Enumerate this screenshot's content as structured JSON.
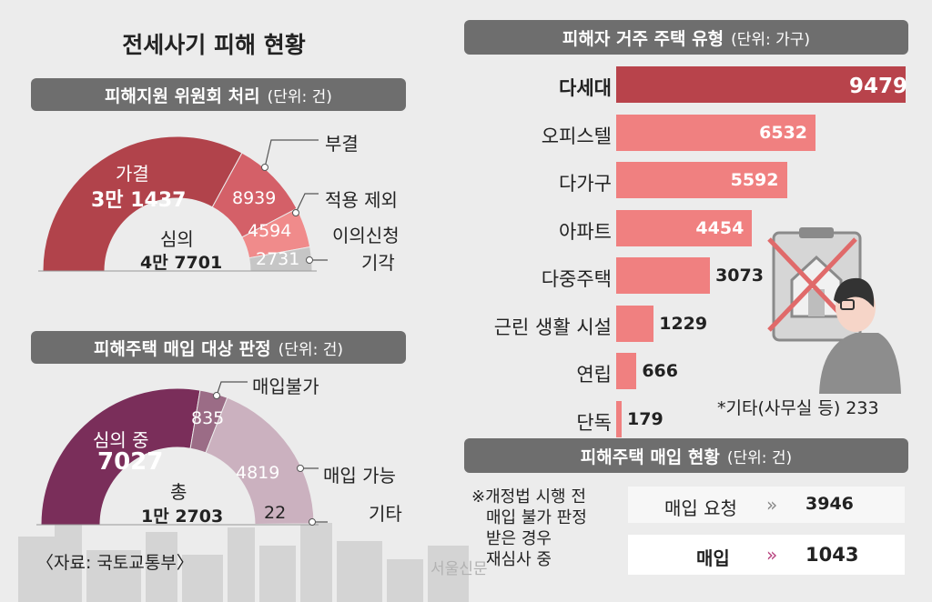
{
  "main_title": "전세사기 피해 현황",
  "left_top": {
    "header": "피해지원 위원회 처리",
    "unit": "(단위: 건)",
    "center_label": "심의",
    "center_value": "4만 7701",
    "inner_value_label": "가결",
    "inner_value": "3만 1437",
    "labels": [
      "부결",
      "적용 제외",
      "이의신청",
      "기각"
    ],
    "values": [
      "8939",
      "4594",
      "2731"
    ]
  },
  "left_bottom": {
    "header": "피해주택 매입 대상 판정",
    "unit": "(단위: 건)",
    "center_label": "총",
    "center_value": "1만 2703",
    "inner_label": "심의 중",
    "inner_value": "7027",
    "labels": [
      "매입불가",
      "매입 가능",
      "기타"
    ],
    "values": [
      "835",
      "4819",
      "22"
    ]
  },
  "source": "〈자료: 국토교통부〉",
  "watermark": "서울신문",
  "right_top": {
    "header": "피해자 거주 주택 유형",
    "unit": "(단위: 가구)",
    "footnote": "*기타(사무실 등) 233"
  },
  "right_bottom": {
    "header": "피해주택 매입 현황",
    "unit": "(단위: 건)",
    "note_lines": [
      "※개정법 시행 전",
      "매입 불가 판정",
      "받은 경우",
      "재심사 중"
    ],
    "rows": [
      {
        "label": "매입 요청",
        "value": "3946"
      },
      {
        "label": "매입",
        "value": "1043"
      }
    ]
  },
  "colors": {
    "red_dark": "#b1434b",
    "red_mid": "#d46068",
    "red_light": "#f08b8b",
    "red_pale": "#f7b5b2",
    "purple_dark": "#7a2e5a",
    "purple_mid": "#9b6c86",
    "purple_light": "#cbb1bf",
    "grey": "#c6c6c6",
    "bar": "#f08080",
    "bar_top": "#b8434b"
  },
  "chart_data": [
    {
      "type": "pie",
      "title": "피해지원 위원회 처리",
      "unit": "건",
      "total": 47701,
      "slices": [
        {
          "name": "가결",
          "value": 31437
        },
        {
          "name": "부결",
          "value": 8939
        },
        {
          "name": "적용 제외",
          "value": 4594
        },
        {
          "name": "이의신청",
          "value": 0
        },
        {
          "name": "기각",
          "value": 2731
        }
      ]
    },
    {
      "type": "pie",
      "title": "피해주택 매입 대상 판정",
      "unit": "건",
      "total": 12703,
      "slices": [
        {
          "name": "심의 중",
          "value": 7027
        },
        {
          "name": "매입불가",
          "value": 835
        },
        {
          "name": "매입 가능",
          "value": 4819
        },
        {
          "name": "기타",
          "value": 22
        }
      ]
    },
    {
      "type": "bar",
      "title": "피해자 거주 주택 유형",
      "unit": "가구",
      "categories": [
        "다세대",
        "오피스텔",
        "다가구",
        "아파트",
        "다중주택",
        "근린 생활 시설",
        "연립",
        "단독"
      ],
      "values": [
        9479,
        6532,
        5592,
        4454,
        3073,
        1229,
        666,
        179
      ]
    },
    {
      "type": "table",
      "title": "피해주택 매입 현황",
      "unit": "건",
      "rows": [
        [
          "매입 요청",
          3946
        ],
        [
          "매입",
          1043
        ]
      ]
    }
  ]
}
